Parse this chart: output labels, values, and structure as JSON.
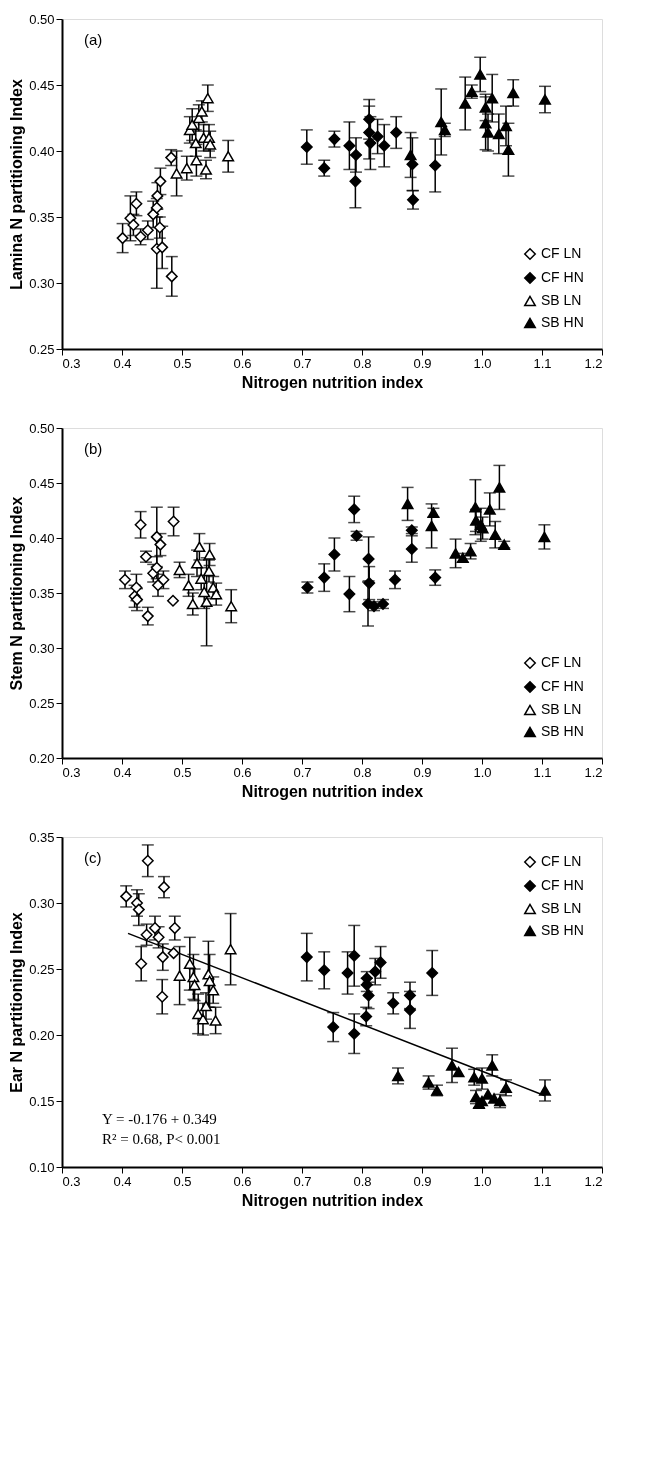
{
  "chart_data": [
    {
      "type": "scatter",
      "annotations": [
        "(a)"
      ],
      "xlabel": "Nitrogen nutrition index",
      "ylabel": "Lamina N partitioning Index",
      "legend": "bottom right",
      "grid": false,
      "xlim": [
        0.3,
        1.2
      ],
      "xticks": [
        {
          "value": 0.3,
          "label": "0.3"
        },
        {
          "value": 0.4,
          "label": "0.4"
        },
        {
          "value": 0.5,
          "label": "0.5"
        },
        {
          "value": 0.6,
          "label": "0.6"
        },
        {
          "value": 0.7,
          "label": "0.7"
        },
        {
          "value": 0.8,
          "label": "0.8"
        },
        {
          "value": 0.9,
          "label": "0.9"
        },
        {
          "value": 1.0,
          "label": "1.0"
        },
        {
          "value": 1.1,
          "label": "1.1"
        },
        {
          "value": 1.2,
          "label": "1.2"
        }
      ],
      "ylim": [
        0.25,
        0.5
      ],
      "yticks": [
        {
          "value": 0.25,
          "label": "0.25"
        },
        {
          "value": 0.3,
          "label": "0.30"
        },
        {
          "value": 0.35,
          "label": "0.35"
        },
        {
          "value": 0.4,
          "label": "0.40"
        },
        {
          "value": 0.45,
          "label": "0.45"
        },
        {
          "value": 0.5,
          "label": "0.50"
        }
      ],
      "series": [
        {
          "name": "CF LN",
          "color": "#ffffff",
          "marker": "diamond",
          "x": [
            0.401,
            0.414,
            0.424,
            0.419,
            0.431,
            0.443,
            0.452,
            0.458,
            0.459,
            0.464,
            0.458,
            0.463,
            0.467,
            0.483,
            0.482
          ],
          "values": [
            0.334,
            0.349,
            0.36,
            0.344,
            0.335,
            0.34,
            0.352,
            0.357,
            0.366,
            0.377,
            0.326,
            0.342,
            0.327,
            0.305,
            0.395
          ],
          "errors": [
            0.011,
            0.017,
            0.009,
            0.008,
            0.006,
            0.007,
            0.01,
            0.007,
            0.01,
            0.01,
            0.03,
            0.008,
            0.016,
            0.015,
            0.006
          ]
        },
        {
          "name": "CF HN",
          "color": "#000000",
          "marker": "diamond",
          "x": [
            0.708,
            0.737,
            0.754,
            0.779,
            0.79,
            0.789,
            0.812,
            0.812,
            0.814,
            0.826,
            0.837,
            0.857,
            0.884,
            0.885,
            0.922
          ],
          "values": [
            0.403,
            0.387,
            0.409,
            0.404,
            0.397,
            0.377,
            0.424,
            0.414,
            0.406,
            0.411,
            0.404,
            0.414,
            0.39,
            0.363,
            0.389
          ],
          "errors": [
            0.013,
            0.006,
            0.006,
            0.018,
            0.013,
            0.02,
            0.015,
            0.02,
            0.02,
            0.013,
            0.016,
            0.012,
            0.02,
            0.007,
            0.02
          ]
        },
        {
          "name": "SB LN",
          "color": "#ffffff",
          "marker": "triangle",
          "x": [
            0.491,
            0.508,
            0.513,
            0.517,
            0.524,
            0.523,
            0.528,
            0.533,
            0.536,
            0.54,
            0.545,
            0.543,
            0.547,
            0.577
          ],
          "values": [
            0.383,
            0.387,
            0.416,
            0.42,
            0.393,
            0.406,
            0.425,
            0.43,
            0.41,
            0.386,
            0.41,
            0.44,
            0.405,
            0.396
          ],
          "errors": [
            0.017,
            0.009,
            0.01,
            0.012,
            0.012,
            0.01,
            0.01,
            0.008,
            0.01,
            0.007,
            0.01,
            0.01,
            0.01,
            0.012
          ]
        },
        {
          "name": "SB HN",
          "color": "#000000",
          "marker": "triangle",
          "x": [
            0.881,
            0.932,
            0.938,
            0.972,
            0.983,
            0.997,
            1.017,
            1.006,
            1.006,
            1.01,
            1.028,
            1.04,
            1.044,
            1.052,
            1.105
          ],
          "values": [
            0.397,
            0.422,
            0.416,
            0.436,
            0.445,
            0.458,
            0.44,
            0.433,
            0.421,
            0.414,
            0.413,
            0.419,
            0.401,
            0.444,
            0.439
          ],
          "errors": [
            0.017,
            0.025,
            0.005,
            0.02,
            0.005,
            0.013,
            0.018,
            0.01,
            0.02,
            0.014,
            0.015,
            0.015,
            0.02,
            0.01,
            0.01
          ]
        }
      ]
    },
    {
      "type": "scatter",
      "annotations": [
        "(b)"
      ],
      "xlabel": "Nitrogen nutrition index",
      "ylabel": "Stem N partitioning Index",
      "legend": "bottom right",
      "grid": false,
      "xlim": [
        0.3,
        1.2
      ],
      "xticks": [
        {
          "value": 0.3,
          "label": "0.3"
        },
        {
          "value": 0.4,
          "label": "0.4"
        },
        {
          "value": 0.5,
          "label": "0.5"
        },
        {
          "value": 0.6,
          "label": "0.6"
        },
        {
          "value": 0.7,
          "label": "0.7"
        },
        {
          "value": 0.8,
          "label": "0.8"
        },
        {
          "value": 0.9,
          "label": "0.9"
        },
        {
          "value": 1.0,
          "label": "1.0"
        },
        {
          "value": 1.1,
          "label": "1.1"
        },
        {
          "value": 1.2,
          "label": "1.2"
        }
      ],
      "ylim": [
        0.2,
        0.5
      ],
      "yticks": [
        {
          "value": 0.2,
          "label": "0.20"
        },
        {
          "value": 0.25,
          "label": "0.25"
        },
        {
          "value": 0.3,
          "label": "0.30"
        },
        {
          "value": 0.35,
          "label": "0.35"
        },
        {
          "value": 0.4,
          "label": "0.40"
        },
        {
          "value": 0.45,
          "label": "0.45"
        },
        {
          "value": 0.5,
          "label": "0.50"
        }
      ],
      "series": [
        {
          "name": "CF LN",
          "color": "#ffffff",
          "marker": "diamond",
          "x": [
            0.405,
            0.424,
            0.431,
            0.421,
            0.425,
            0.44,
            0.443,
            0.458,
            0.464,
            0.452,
            0.458,
            0.46,
            0.469,
            0.486,
            0.485
          ],
          "values": [
            0.362,
            0.355,
            0.412,
            0.347,
            0.344,
            0.383,
            0.329,
            0.401,
            0.394,
            0.368,
            0.373,
            0.357,
            0.362,
            0.415,
            0.343
          ],
          "errors": [
            0.008,
            0.012,
            0.012,
            0.01,
            0.01,
            0.005,
            0.008,
            0.027,
            0.01,
            0.008,
            0.01,
            0.01,
            0.008,
            0.013,
            null
          ]
        },
        {
          "name": "CF HN",
          "color": "#000000",
          "marker": "diamond",
          "x": [
            0.709,
            0.737,
            0.754,
            0.779,
            0.787,
            0.791,
            0.811,
            0.812,
            0.81,
            0.82,
            0.835,
            0.855,
            0.883,
            0.883,
            0.922
          ],
          "values": [
            0.355,
            0.364,
            0.385,
            0.349,
            0.426,
            0.402,
            0.381,
            0.359,
            0.34,
            0.338,
            0.34,
            0.362,
            0.407,
            0.39,
            0.364
          ],
          "errors": [
            0.005,
            0.0125,
            0.015,
            0.016,
            0.012,
            0.004,
            0.02,
            0.015,
            0.02,
            0.004,
            0.004,
            0.008,
            0.003,
            0.012,
            0.007
          ]
        },
        {
          "name": "SB LN",
          "color": "#ffffff",
          "marker": "triangle",
          "x": [
            0.496,
            0.511,
            0.518,
            0.529,
            0.525,
            0.532,
            0.537,
            0.541,
            0.546,
            0.545,
            0.552,
            0.557,
            0.582
          ],
          "values": [
            0.371,
            0.357,
            0.34,
            0.392,
            0.377,
            0.363,
            0.351,
            0.342,
            0.385,
            0.37,
            0.355,
            0.349,
            0.338
          ],
          "errors": [
            0.007,
            0.01,
            0.01,
            0.012,
            0.012,
            0.01,
            0.015,
            0.04,
            0.01,
            0.01,
            0.01,
            0.01,
            0.015
          ]
        },
        {
          "name": "SB HN",
          "color": "#000000",
          "marker": "triangle",
          "x": [
            0.876,
            0.919,
            0.916,
            0.956,
            0.968,
            0.981,
            0.989,
            0.99,
            0.998,
            1.001,
            1.013,
            1.022,
            1.037,
            1.029,
            1.104
          ],
          "values": [
            0.431,
            0.423,
            0.411,
            0.386,
            0.382,
            0.388,
            0.428,
            0.416,
            0.412,
            0.409,
            0.426,
            0.403,
            0.394,
            0.446,
            0.401
          ],
          "errors": [
            0.015,
            0.004,
            0.02,
            0.013,
            0.004,
            0.007,
            0.025,
            0.01,
            0.015,
            0.01,
            0.015,
            0.012,
            0.003,
            0.02,
            0.011
          ]
        }
      ]
    },
    {
      "type": "scatter",
      "annotations": [
        "(c)",
        "Y = -0.176 + 0.349",
        "R² = 0.68, P< 0.001"
      ],
      "xlabel": "Nitrogen nutrition index",
      "ylabel": "Ear N partitioning Index",
      "legend": "top right",
      "grid": false,
      "xlim": [
        0.3,
        1.2
      ],
      "xticks": [
        {
          "value": 0.3,
          "label": "0.3"
        },
        {
          "value": 0.4,
          "label": "0.4"
        },
        {
          "value": 0.5,
          "label": "0.5"
        },
        {
          "value": 0.6,
          "label": "0.6"
        },
        {
          "value": 0.7,
          "label": "0.7"
        },
        {
          "value": 0.8,
          "label": "0.8"
        },
        {
          "value": 0.9,
          "label": "0.9"
        },
        {
          "value": 1.0,
          "label": "1.0"
        },
        {
          "value": 1.1,
          "label": "1.1"
        },
        {
          "value": 1.2,
          "label": "1.2"
        }
      ],
      "ylim": [
        0.1,
        0.35
      ],
      "yticks": [
        {
          "value": 0.1,
          "label": "0.10"
        },
        {
          "value": 0.15,
          "label": "0.15"
        },
        {
          "value": 0.2,
          "label": "0.20"
        },
        {
          "value": 0.25,
          "label": "0.25"
        },
        {
          "value": 0.3,
          "label": "0.30"
        },
        {
          "value": 0.35,
          "label": "0.35"
        }
      ],
      "series": [
        {
          "name": "CF LN",
          "color": "#ffffff",
          "marker": "diamond",
          "x": [
            0.407,
            0.425,
            0.428,
            0.432,
            0.443,
            0.441,
            0.455,
            0.461,
            0.468,
            0.47,
            0.467,
            0.488,
            0.486
          ],
          "values": [
            0.305,
            0.3,
            0.295,
            0.254,
            0.332,
            0.276,
            0.281,
            0.274,
            0.259,
            0.312,
            0.229,
            0.281,
            0.262
          ],
          "errors": [
            0.008,
            0.01,
            0.012,
            0.013,
            0.012,
            0.008,
            0.009,
            0.008,
            0.01,
            0.008,
            0.013,
            0.009,
            null
          ]
        },
        {
          "name": "CF HN",
          "color": "#000000",
          "marker": "diamond",
          "x": [
            0.708,
            0.737,
            0.752,
            0.776,
            0.787,
            0.787,
            0.808,
            0.808,
            0.811,
            0.807,
            0.822,
            0.831,
            0.852,
            0.88,
            0.88,
            0.917
          ],
          "values": [
            0.259,
            0.249,
            0.206,
            0.247,
            0.26,
            0.201,
            0.243,
            0.238,
            0.23,
            0.214,
            0.248,
            0.255,
            0.224,
            0.23,
            0.219,
            0.247
          ],
          "errors": [
            0.018,
            0.014,
            0.011,
            0.016,
            0.023,
            0.015,
            0.005,
            0.005,
            0.01,
            0.007,
            0.01,
            0.012,
            0.008,
            0.01,
            0.014,
            0.017
          ]
        },
        {
          "name": "SB LN",
          "color": "#ffffff",
          "marker": "triangle",
          "x": [
            0.496,
            0.513,
            0.519,
            0.521,
            0.527,
            0.535,
            0.54,
            0.544,
            0.546,
            0.552,
            0.556,
            0.581
          ],
          "values": [
            0.245,
            0.254,
            0.244,
            0.238,
            0.216,
            0.212,
            0.222,
            0.246,
            0.241,
            0.234,
            0.211,
            0.265
          ],
          "errors": [
            0.022,
            0.02,
            0.017,
            0.012,
            0.015,
            0.012,
            0.01,
            0.025,
            0.02,
            0.01,
            0.01,
            0.027
          ]
        },
        {
          "name": "SB HN",
          "color": "#000000",
          "marker": "triangle",
          "x": [
            0.86,
            0.911,
            0.925,
            0.95,
            0.961,
            0.987,
            0.99,
            0.995,
            1.0,
            1.0,
            1.01,
            1.017,
            1.02,
            1.03,
            1.04,
            1.105
          ],
          "values": [
            0.169,
            0.164,
            0.158,
            0.177,
            0.172,
            0.168,
            0.153,
            0.148,
            0.15,
            0.167,
            0.155,
            0.177,
            0.152,
            0.15,
            0.16,
            0.158
          ],
          "errors": [
            0.006,
            0.005,
            0.004,
            0.013,
            null,
            0.006,
            0.005,
            0.003,
            null,
            0.008,
            null,
            0.008,
            null,
            0.005,
            0.006,
            0.008
          ]
        },
        {
          "type": "line",
          "color": "#000000",
          "x": [
            0.41,
            1.105
          ],
          "values": [
            0.277,
            0.154
          ]
        }
      ]
    }
  ]
}
